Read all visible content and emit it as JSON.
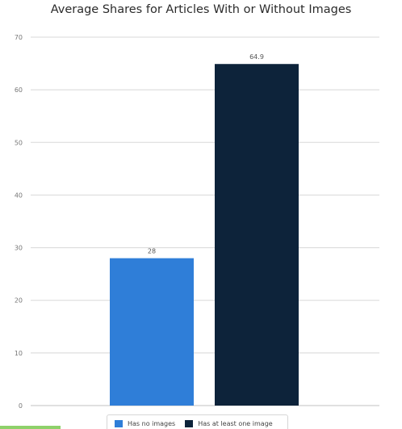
{
  "chart_data": {
    "type": "bar",
    "title": "Average Shares for Articles With or Without Images",
    "xlabel": "",
    "ylabel": "",
    "categories": [
      "Has no images",
      "Has at least one image"
    ],
    "values": [
      28,
      64.9
    ],
    "data_labels": [
      "28",
      "64.9"
    ],
    "colors": [
      "#2f7ed8",
      "#0d233a"
    ],
    "ylim": [
      0,
      70
    ],
    "yticks": [
      0,
      10,
      20,
      30,
      40,
      50,
      60,
      70
    ],
    "grid": true,
    "legend": {
      "position": "bottom",
      "entries": [
        {
          "label": "Has no images",
          "color": "#2f7ed8"
        },
        {
          "label": "Has at least one image",
          "color": "#0d233a"
        }
      ]
    }
  }
}
